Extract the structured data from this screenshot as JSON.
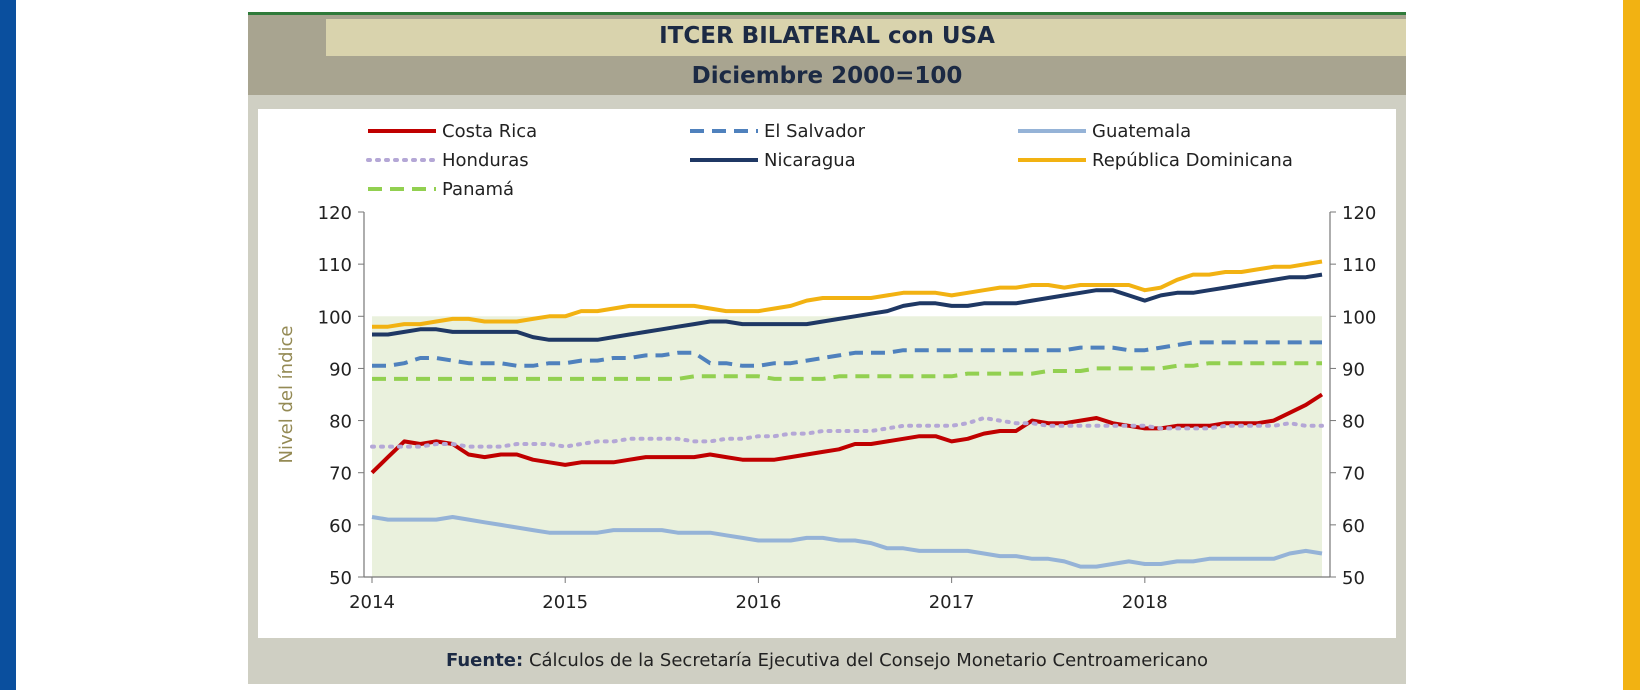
{
  "title": "ITCER BILATERAL con USA",
  "subtitle": "Diciembre 2000=100",
  "source_label": "Fuente:",
  "source_text": "Cálculos de la Secretaría Ejecutiva del Consejo Monetario Centroamericano",
  "chart_data": {
    "type": "line",
    "title": "ITCER BILATERAL con USA",
    "subtitle": "Diciembre 2000=100",
    "ylabel": "Nivel del índice",
    "xlabel": "",
    "ylim": [
      50,
      120
    ],
    "yticks": [
      50,
      60,
      70,
      80,
      90,
      100,
      110,
      120
    ],
    "xlim": [
      2014,
      2018.917
    ],
    "xticks": [
      "2014",
      "2015",
      "2016",
      "2017",
      "2018"
    ],
    "legend_position": "top",
    "secondary_y_axis": true,
    "x": [
      2014.0,
      2014.083,
      2014.167,
      2014.25,
      2014.333,
      2014.417,
      2014.5,
      2014.583,
      2014.667,
      2014.75,
      2014.833,
      2014.917,
      2015.0,
      2015.083,
      2015.167,
      2015.25,
      2015.333,
      2015.417,
      2015.5,
      2015.583,
      2015.667,
      2015.75,
      2015.833,
      2015.917,
      2016.0,
      2016.083,
      2016.167,
      2016.25,
      2016.333,
      2016.417,
      2016.5,
      2016.583,
      2016.667,
      2016.75,
      2016.833,
      2016.917,
      2017.0,
      2017.083,
      2017.167,
      2017.25,
      2017.333,
      2017.417,
      2017.5,
      2017.583,
      2017.667,
      2017.75,
      2017.833,
      2017.917,
      2018.0,
      2018.083,
      2018.167,
      2018.25,
      2018.333,
      2018.417,
      2018.5,
      2018.583,
      2018.667,
      2018.75,
      2018.833,
      2018.917
    ],
    "series": [
      {
        "name": "Costa Rica",
        "color": "#c00000",
        "style": "solid",
        "values": [
          70,
          73,
          76,
          75.5,
          76,
          75.5,
          73.5,
          73,
          73.5,
          73.5,
          72.5,
          72,
          71.5,
          72,
          72,
          72,
          72.5,
          73,
          73,
          73,
          73,
          73.5,
          73,
          72.5,
          72.5,
          72.5,
          73,
          73.5,
          74,
          74.5,
          75.5,
          75.5,
          76,
          76.5,
          77,
          77,
          76,
          76.5,
          77.5,
          78,
          78,
          80,
          79.5,
          79.5,
          80,
          80.5,
          79.5,
          79,
          78.5,
          78.5,
          79,
          79,
          79,
          79.5,
          79.5,
          79.5,
          80,
          81.5,
          83,
          85
        ]
      },
      {
        "name": "El Salvador",
        "color": "#4f81bd",
        "style": "dashed",
        "values": [
          90.5,
          90.5,
          91,
          92,
          92,
          91.5,
          91,
          91,
          91,
          90.5,
          90.5,
          91,
          91,
          91.5,
          91.5,
          92,
          92,
          92.5,
          92.5,
          93,
          93,
          91,
          91,
          90.5,
          90.5,
          91,
          91,
          91.5,
          92,
          92.5,
          93,
          93,
          93,
          93.5,
          93.5,
          93.5,
          93.5,
          93.5,
          93.5,
          93.5,
          93.5,
          93.5,
          93.5,
          93.5,
          94,
          94,
          94,
          93.5,
          93.5,
          94,
          94.5,
          95,
          95,
          95,
          95,
          95,
          95,
          95,
          95,
          95
        ]
      },
      {
        "name": "Guatemala",
        "color": "#95b3d7",
        "style": "solid",
        "values": [
          61.5,
          61,
          61,
          61,
          61,
          61.5,
          61,
          60.5,
          60,
          59.5,
          59,
          58.5,
          58.5,
          58.5,
          58.5,
          59,
          59,
          59,
          59,
          58.5,
          58.5,
          58.5,
          58,
          57.5,
          57,
          57,
          57,
          57.5,
          57.5,
          57,
          57,
          56.5,
          55.5,
          55.5,
          55,
          55,
          55,
          55,
          54.5,
          54,
          54,
          53.5,
          53.5,
          53,
          52,
          52,
          52.5,
          53,
          52.5,
          52.5,
          53,
          53,
          53.5,
          53.5,
          53.5,
          53.5,
          53.5,
          54.5,
          55,
          54.5
        ]
      },
      {
        "name": "Honduras",
        "color": "#b4a7d6",
        "style": "dotted",
        "values": [
          75,
          75,
          75,
          75,
          75.5,
          75.5,
          75,
          75,
          75,
          75.5,
          75.5,
          75.5,
          75,
          75.5,
          76,
          76,
          76.5,
          76.5,
          76.5,
          76.5,
          76,
          76,
          76.5,
          76.5,
          77,
          77,
          77.5,
          77.5,
          78,
          78,
          78,
          78,
          78.5,
          79,
          79,
          79,
          79,
          79.5,
          80.5,
          80,
          79.5,
          79.5,
          79,
          79,
          79,
          79,
          79,
          79,
          79,
          78.5,
          78.5,
          78.5,
          78.5,
          79,
          79,
          79,
          79,
          79.5,
          79,
          79
        ]
      },
      {
        "name": "Nicaragua",
        "color": "#1f3864",
        "style": "solid",
        "values": [
          96.5,
          96.5,
          97,
          97.5,
          97.5,
          97,
          97,
          97,
          97,
          97,
          96,
          95.5,
          95.5,
          95.5,
          95.5,
          96,
          96.5,
          97,
          97.5,
          98,
          98.5,
          99,
          99,
          98.5,
          98.5,
          98.5,
          98.5,
          98.5,
          99,
          99.5,
          100,
          100.5,
          101,
          102,
          102.5,
          102.5,
          102,
          102,
          102.5,
          102.5,
          102.5,
          103,
          103.5,
          104,
          104.5,
          105,
          105,
          104,
          103,
          104,
          104.5,
          104.5,
          105,
          105.5,
          106,
          106.5,
          107,
          107.5,
          107.5,
          108
        ]
      },
      {
        "name": "República Dominicana",
        "color": "#f2b212",
        "style": "solid",
        "values": [
          98,
          98,
          98.5,
          98.5,
          99,
          99.5,
          99.5,
          99,
          99,
          99,
          99.5,
          100,
          100,
          101,
          101,
          101.5,
          102,
          102,
          102,
          102,
          102,
          101.5,
          101,
          101,
          101,
          101.5,
          102,
          103,
          103.5,
          103.5,
          103.5,
          103.5,
          104,
          104.5,
          104.5,
          104.5,
          104,
          104.5,
          105,
          105.5,
          105.5,
          106,
          106,
          105.5,
          106,
          106,
          106,
          106,
          105,
          105.5,
          107,
          108,
          108,
          108.5,
          108.5,
          109,
          109.5,
          109.5,
          110,
          110.5
        ]
      },
      {
        "name": "Panamá",
        "color": "#92d050",
        "style": "dashed",
        "values": [
          88,
          88,
          88,
          88,
          88,
          88,
          88,
          88,
          88,
          88,
          88,
          88,
          88,
          88,
          88,
          88,
          88,
          88,
          88,
          88,
          88.5,
          88.5,
          88.5,
          88.5,
          88.5,
          88,
          88,
          88,
          88,
          88.5,
          88.5,
          88.5,
          88.5,
          88.5,
          88.5,
          88.5,
          88.5,
          89,
          89,
          89,
          89,
          89,
          89.5,
          89.5,
          89.5,
          90,
          90,
          90,
          90,
          90,
          90.5,
          90.5,
          91,
          91,
          91,
          91,
          91,
          91,
          91,
          91
        ]
      }
    ]
  }
}
